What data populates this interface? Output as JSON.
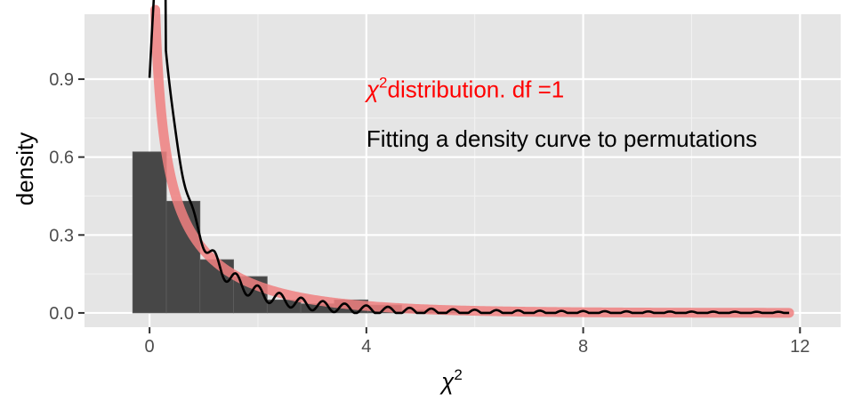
{
  "chart_data": {
    "type": "histogram",
    "xlabel_base": "χ",
    "xlabel_sup": "2",
    "ylabel": "density",
    "xlim": [
      -1.2,
      12.75
    ],
    "ylim": [
      -0.055,
      1.15
    ],
    "x_ticks": [
      0,
      4,
      8,
      12
    ],
    "x_tick_labels": [
      "0",
      "4",
      "8",
      "12"
    ],
    "y_ticks": [
      0.0,
      0.3,
      0.6,
      0.9
    ],
    "y_tick_labels": [
      "0.0",
      "0.3",
      "0.6",
      "0.9"
    ],
    "grid": true,
    "bins": [
      {
        "x0": -0.31,
        "x1": 0.31,
        "density": 0.62
      },
      {
        "x0": 0.31,
        "x1": 0.93,
        "density": 0.43
      },
      {
        "x0": 0.93,
        "x1": 1.55,
        "density": 0.205
      },
      {
        "x0": 1.55,
        "x1": 2.17,
        "density": 0.14
      },
      {
        "x0": 2.17,
        "x1": 2.79,
        "density": 0.05
      },
      {
        "x0": 2.79,
        "x1": 3.41,
        "density": 0.035
      },
      {
        "x0": 3.41,
        "x1": 4.03,
        "density": 0.05
      },
      {
        "x0": 4.03,
        "x1": 4.65,
        "density": 0.03
      },
      {
        "x0": 4.65,
        "x1": 5.27,
        "density": 0.01
      },
      {
        "x0": 5.27,
        "x1": 5.89,
        "density": 0.005
      }
    ],
    "series": [
      {
        "kind": "theoretical chi-square density, df = 1",
        "color": "#f08080",
        "x_max": 11.8
      },
      {
        "kind": "kernel density estimate of permutations",
        "color": "#000000",
        "x_min": 0.0,
        "x_max": 11.8
      }
    ],
    "annotations": [
      {
        "prefix": "χ",
        "sup": "2",
        "text": "distribution. df =1",
        "color": "#ff0000",
        "x": 4.0,
        "y": 0.86
      },
      {
        "text": "Fitting a density curve to permutations",
        "color": "#000000",
        "x": 4.0,
        "y": 0.67
      }
    ]
  }
}
